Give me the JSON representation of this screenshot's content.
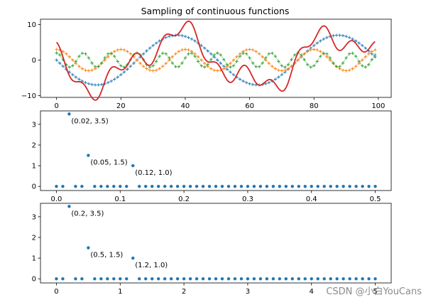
{
  "chart_data": [
    {
      "type": "line",
      "title": "Sampling of continuous functions",
      "xlabel": "",
      "ylabel": "",
      "xlim": [
        -5,
        104
      ],
      "ylim": [
        -10.5,
        11.5
      ],
      "xticks": [
        0,
        20,
        40,
        60,
        80,
        100
      ],
      "yticks": [
        -10,
        0,
        10
      ],
      "grid": false,
      "x": {
        "start": 0,
        "stop": 99,
        "step": 1
      },
      "series": [
        {
          "color": "#1f77b4",
          "marker": "+",
          "expr": {
            "amplitude": 7,
            "frequency": 0.02,
            "phase": 3.14159
          }
        },
        {
          "color": "#ff7f0e",
          "marker": "+",
          "expr": {
            "amplitude": 3,
            "frequency": 0.05,
            "phase": 1.5708
          }
        },
        {
          "color": "#2ca02c",
          "marker": "+",
          "expr": {
            "amplitude": 2,
            "frequency": 0.12,
            "phase": 1.5708
          }
        },
        {
          "color": "#d62728",
          "marker": "none",
          "line_width": 1.8,
          "expr": "sum of the three series, smooth curve"
        }
      ]
    },
    {
      "type": "scatter",
      "xlabel": "",
      "ylabel": "",
      "xlim": [
        -0.025,
        0.525
      ],
      "ylim": [
        -0.2,
        3.65
      ],
      "xticks": [
        0.0,
        0.1,
        0.2,
        0.3,
        0.4,
        0.5
      ],
      "xtick_labels": [
        "0.0",
        "0.1",
        "0.2",
        "0.3",
        "0.4",
        "0.5"
      ],
      "yticks": [
        0,
        1,
        2,
        3
      ],
      "grid": false,
      "x": {
        "start": 0,
        "stop": 0.5,
        "step": 0.01
      },
      "peaks": [
        {
          "x": 0.02,
          "y": 3.5
        },
        {
          "x": 0.05,
          "y": 1.5
        },
        {
          "x": 0.12,
          "y": 1.0
        }
      ],
      "baseline_y": 0,
      "annotations": [
        "(0.02, 3.5)",
        "(0.05, 1.5)",
        "(0.12, 1.0)"
      ],
      "color": "#1f77b4"
    },
    {
      "type": "scatter",
      "xlabel": "",
      "ylabel": "",
      "xlim": [
        -0.25,
        5.25
      ],
      "ylim": [
        -0.2,
        3.65
      ],
      "xticks": [
        0,
        1,
        2,
        3,
        4,
        5
      ],
      "xtick_labels": [
        "0",
        "1",
        "2",
        "3",
        "4",
        "5"
      ],
      "yticks": [
        0,
        1,
        2,
        3
      ],
      "grid": false,
      "x": {
        "start": 0,
        "stop": 5,
        "step": 0.1
      },
      "peaks": [
        {
          "x": 0.2,
          "y": 3.5
        },
        {
          "x": 0.5,
          "y": 1.5
        },
        {
          "x": 1.2,
          "y": 1.0
        }
      ],
      "baseline_y": 0,
      "annotations": [
        "(0.2, 3.5)",
        "(0.5, 1.5)",
        "(1.2, 1.0)"
      ],
      "color": "#1f77b4"
    }
  ],
  "watermark": "CSDN @小白YouCans"
}
